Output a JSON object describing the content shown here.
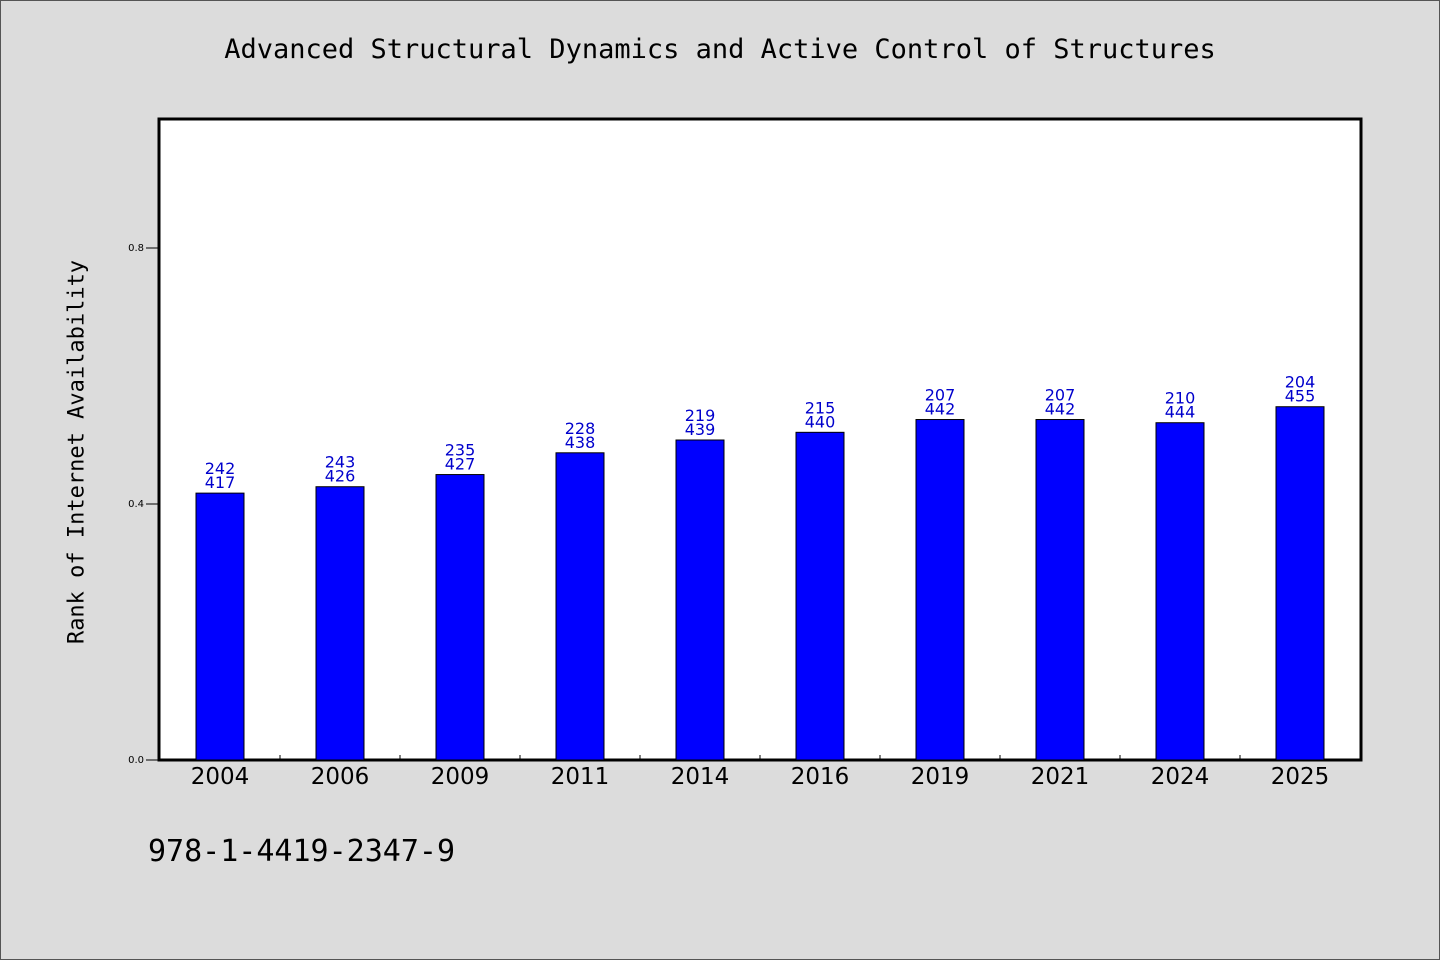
{
  "chart_data": {
    "type": "bar",
    "title": "Advanced Structural Dynamics and Active Control of Structures",
    "xlabel": "",
    "ylabel": "Rank of Internet Availability",
    "categories": [
      "2004",
      "2006",
      "2009",
      "2011",
      "2014",
      "2016",
      "2019",
      "2021",
      "2024",
      "2025"
    ],
    "values": [
      0.417,
      0.426,
      0.427,
      0.438,
      0.439,
      0.44,
      0.442,
      0.442,
      0.444,
      0.455
    ],
    "bar_heights": [
      0.417,
      0.427,
      0.446,
      0.48,
      0.5,
      0.512,
      0.532,
      0.532,
      0.527,
      0.552
    ],
    "labels_top": [
      "242",
      "243",
      "235",
      "228",
      "219",
      "215",
      "207",
      "207",
      "210",
      "204"
    ],
    "labels_bottom": [
      "417",
      "426",
      "427",
      "438",
      "439",
      "440",
      "442",
      "442",
      "444",
      "455"
    ],
    "ylim": [
      0,
      1.0
    ],
    "yticks": [
      0.0,
      0.4,
      0.8
    ],
    "ytick_labels": [
      "0.0",
      "0.4",
      "0.8"
    ],
    "grid": false,
    "colors": {
      "bar": "#0000ff",
      "data_label": "#0000cc",
      "background": "#dcdcdc",
      "plot_bg": "#ffffff"
    }
  },
  "footer": {
    "isbn": "978-1-4419-2347-9"
  }
}
